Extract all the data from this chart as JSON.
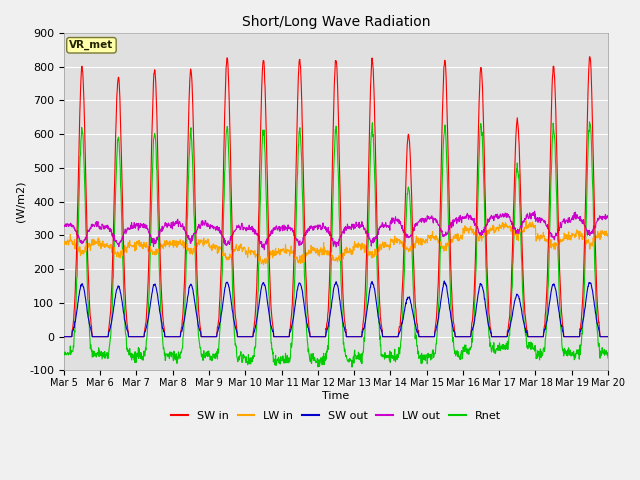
{
  "title": "Short/Long Wave Radiation",
  "xlabel": "Time",
  "ylabel": "(W/m2)",
  "ylim": [
    -100,
    900
  ],
  "yticks": [
    -100,
    0,
    100,
    200,
    300,
    400,
    500,
    600,
    700,
    800,
    900
  ],
  "annotation": "VR_met",
  "colors": {
    "SW_in": "#ff0000",
    "LW_in": "#ffa500",
    "SW_out": "#0000cc",
    "LW_out": "#cc00cc",
    "Rnet": "#00cc00"
  },
  "legend_labels": [
    "SW in",
    "LW in",
    "SW out",
    "LW out",
    "Rnet"
  ],
  "fig_bg": "#f0f0f0",
  "plot_bg": "#e0e0e0",
  "SW_in_peaks": [
    800,
    770,
    790,
    790,
    825,
    820,
    820,
    820,
    820,
    600,
    820,
    800,
    640,
    800,
    830
  ],
  "LW_in_base": [
    280,
    270,
    275,
    280,
    265,
    250,
    255,
    255,
    270,
    285,
    295,
    320,
    330,
    295,
    305
  ],
  "LW_out_base": [
    330,
    325,
    330,
    335,
    325,
    320,
    325,
    325,
    330,
    345,
    350,
    355,
    360,
    345,
    355
  ]
}
